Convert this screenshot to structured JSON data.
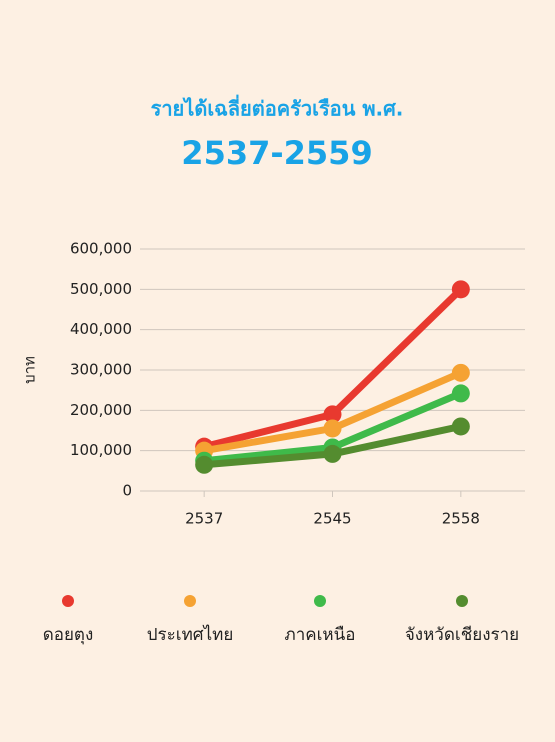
{
  "chart_data": {
    "type": "line",
    "title": "รายได้เฉลี่ยต่อครัวเรือน พ.ศ.",
    "subtitle": "2537-2559",
    "y_label": "บาท",
    "categories": [
      "2537",
      "2545",
      "2558"
    ],
    "series": [
      {
        "name": "ดอยตุง",
        "color": "#e8392f",
        "values": [
          110000,
          190000,
          500000
        ]
      },
      {
        "name": "ประเทศไทย",
        "color": "#f5a233",
        "values": [
          100000,
          155000,
          293000
        ]
      },
      {
        "name": "ภาคเหนือ",
        "color": "#3fba4a",
        "values": [
          75000,
          108000,
          242000
        ]
      },
      {
        "name": "จังหวัดเชียงราย",
        "color": "#548c2f",
        "values": [
          65000,
          92000,
          160000
        ]
      }
    ],
    "ylim": [
      0,
      600000
    ],
    "yticks": [
      0,
      {
        "value": 100000,
        "label": "100,000"
      },
      {
        "value": 200000,
        "label": "200,000"
      },
      {
        "value": 300000,
        "label": "300,000"
      },
      {
        "value": 400000,
        "label": "400,000"
      },
      {
        "value": 500000,
        "label": "500,000"
      },
      {
        "value": 600000,
        "label": "600,000"
      }
    ],
    "grid": true,
    "legend": "bottom"
  }
}
